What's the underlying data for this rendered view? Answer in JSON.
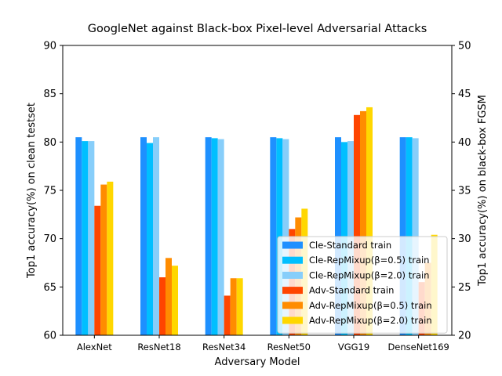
{
  "chart_data": {
    "type": "bar",
    "title": "GoogleNet against Black-box Pixel-level Adversarial Attacks",
    "xlabel": "Adversary Model",
    "ylabel": "Top1 accuracy(%) on clean testset",
    "ylabel_right": "Top1 accuracy(%) on black-box FGSM",
    "ylim": [
      60,
      90
    ],
    "ylim_right": [
      20,
      50
    ],
    "yticks": [
      60,
      65,
      70,
      75,
      80,
      85,
      90
    ],
    "yticks_right": [
      20,
      25,
      30,
      35,
      40,
      45,
      50
    ],
    "categories": [
      "AlexNet",
      "ResNet18",
      "ResNet34",
      "ResNet50",
      "VGG19",
      "DenseNet169"
    ],
    "legend_position": "lower-right",
    "series": [
      {
        "name": "Cle-Standard train",
        "axis": "left",
        "color": "#1e90ff",
        "values": [
          80.5,
          80.5,
          80.5,
          80.5,
          80.5,
          80.5
        ]
      },
      {
        "name": "Cle-RepMixup(β=0.5) train",
        "axis": "left",
        "color": "#00bfff",
        "values": [
          80.1,
          79.9,
          80.4,
          80.4,
          80.0,
          80.5
        ]
      },
      {
        "name": "Cle-RepMixup(β=2.0) train",
        "axis": "left",
        "color": "#87cefa",
        "values": [
          80.1,
          80.5,
          80.3,
          80.3,
          80.1,
          80.4
        ]
      },
      {
        "name": "Adv-Standard train",
        "axis": "right",
        "color": "#ff4500",
        "values": [
          33.4,
          26.0,
          24.1,
          31.0,
          42.8,
          25.5
        ]
      },
      {
        "name": "Adv-RepMixup(β=0.5) train",
        "axis": "right",
        "color": "#ff8c00",
        "values": [
          35.6,
          28.0,
          25.9,
          32.2,
          43.2,
          27.5
        ]
      },
      {
        "name": "Adv-RepMixup(β=2.0) train",
        "axis": "right",
        "color": "#ffd700",
        "values": [
          35.9,
          27.2,
          25.9,
          33.1,
          43.6,
          30.4
        ]
      }
    ]
  }
}
